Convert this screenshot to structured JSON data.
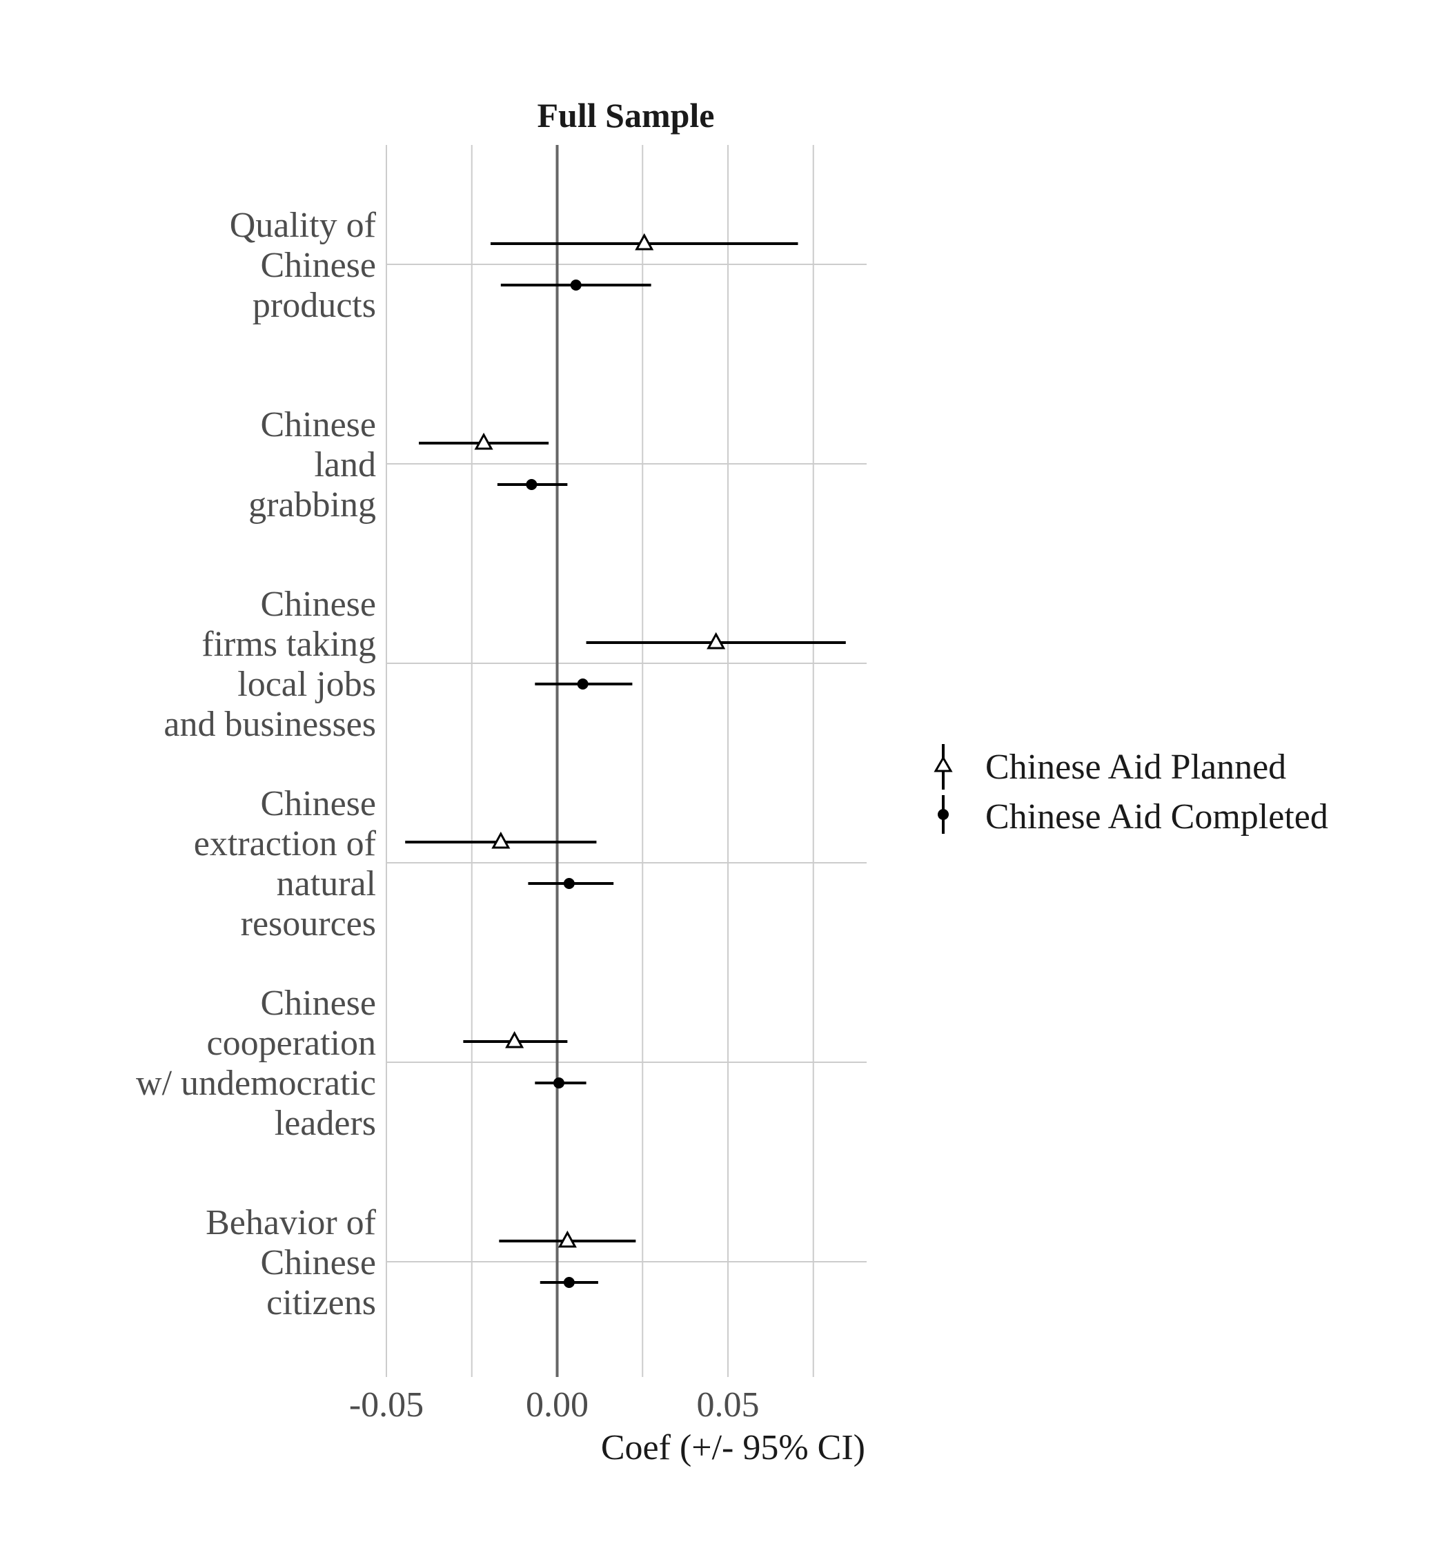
{
  "chart_data": {
    "type": "coefficient-plot",
    "title": "Full Sample",
    "xlabel": "Coef (+/- 95% CI)",
    "ylabel": "",
    "xlim": [
      -0.05,
      0.09
    ],
    "x_ticks": [
      -0.05,
      0.0,
      0.05
    ],
    "x_tick_labels": [
      "-0.05",
      "0.00",
      "0.05"
    ],
    "x_minor_gridlines": [
      -0.025,
      0.025,
      0.075
    ],
    "zero_line": 0,
    "grid": true,
    "legend_position": "right",
    "categories": [
      {
        "label_lines": [
          "Quality of",
          "Chinese",
          "products"
        ]
      },
      {
        "label_lines": [
          "Chinese",
          "land",
          "grabbing"
        ]
      },
      {
        "label_lines": [
          "Chinese",
          "firms taking",
          "local jobs",
          "and businesses"
        ]
      },
      {
        "label_lines": [
          "Chinese",
          "extraction of",
          "natural",
          "resources"
        ]
      },
      {
        "label_lines": [
          "Chinese",
          "cooperation",
          "w/ undemocratic",
          "leaders"
        ]
      },
      {
        "label_lines": [
          "Behavior of",
          "Chinese",
          "citizens"
        ]
      }
    ],
    "series": [
      {
        "name": "Chinese Aid Planned",
        "marker": "triangle-open",
        "estimates": [
          0.0255,
          -0.0215,
          0.0465,
          -0.0165,
          -0.0125,
          0.003
        ],
        "ci_low": [
          -0.0195,
          -0.0405,
          0.0085,
          -0.0445,
          -0.0275,
          -0.017
        ],
        "ci_high": [
          0.0705,
          -0.0025,
          0.0845,
          0.0115,
          0.003,
          0.023
        ]
      },
      {
        "name": "Chinese Aid Completed",
        "marker": "circle-filled",
        "estimates": [
          0.0055,
          -0.0075,
          0.0075,
          0.0035,
          0.0005,
          0.0035
        ],
        "ci_low": [
          -0.0165,
          -0.0175,
          -0.0065,
          -0.0085,
          -0.0065,
          -0.005
        ],
        "ci_high": [
          0.0275,
          0.003,
          0.022,
          0.0165,
          0.0085,
          0.012
        ]
      }
    ]
  },
  "colors": {
    "marks": "#000000",
    "grid": "#cccccc",
    "zero_line": "#666666",
    "label_text": "#4d4d4d",
    "title_text": "#1a1a1a"
  }
}
